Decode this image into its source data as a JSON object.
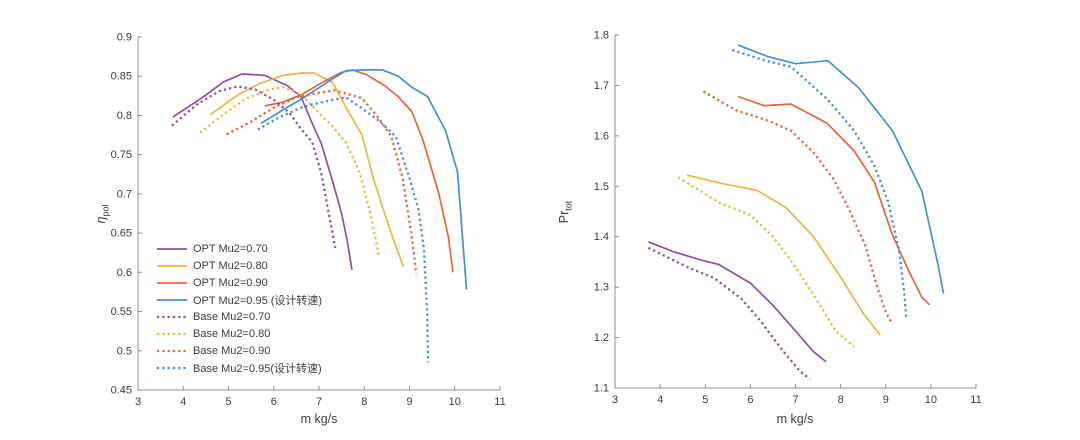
{
  "figure": {
    "background": "#ffffff"
  },
  "chart_data": [
    {
      "type": "line",
      "title": "",
      "xlabel": "m kg/s",
      "ylabel_main": "η",
      "ylabel_sub": "pol",
      "xlim": [
        3,
        11
      ],
      "ylim": [
        0.45,
        0.9
      ],
      "xticks": [
        3,
        4,
        5,
        6,
        7,
        8,
        9,
        10,
        11
      ],
      "yticks": [
        0.45,
        0.5,
        0.55,
        0.6,
        0.65,
        0.7,
        0.75,
        0.8,
        0.85,
        0.9
      ],
      "grid": false,
      "legend": true,
      "legend_position": "southwest",
      "series": [
        {
          "name": "OPT Mu2=0.70",
          "color": "#8E4FA8",
          "style": "solid",
          "x": [
            3.77,
            4.4,
            4.9,
            5.3,
            5.8,
            6.3,
            6.6,
            6.85,
            7.05,
            7.3,
            7.5,
            7.62,
            7.73
          ],
          "y": [
            0.798,
            0.822,
            0.843,
            0.853,
            0.851,
            0.838,
            0.824,
            0.79,
            0.764,
            0.716,
            0.675,
            0.641,
            0.603
          ]
        },
        {
          "name": "OPT Mu2=0.80",
          "color": "#EFB63C",
          "style": "solid",
          "x": [
            4.6,
            5.2,
            5.7,
            6.2,
            6.6,
            6.9,
            7.3,
            7.6,
            7.95,
            8.2,
            8.45,
            8.65,
            8.87
          ],
          "y": [
            0.801,
            0.826,
            0.841,
            0.851,
            0.854,
            0.854,
            0.842,
            0.81,
            0.775,
            0.72,
            0.675,
            0.641,
            0.607
          ]
        },
        {
          "name": "OPT Mu2=0.90",
          "color": "#E8643A",
          "style": "solid",
          "x": [
            5.8,
            6.2,
            6.6,
            7.1,
            7.5,
            7.75,
            8.05,
            8.45,
            8.75,
            9.05,
            9.3,
            9.65,
            9.86,
            9.96
          ],
          "y": [
            0.812,
            0.817,
            0.826,
            0.843,
            0.855,
            0.858,
            0.852,
            0.838,
            0.824,
            0.805,
            0.768,
            0.7,
            0.645,
            0.6
          ]
        },
        {
          "name": "OPT Mu2=0.95 (设计转速)",
          "color": "#4191DB",
          "style": "solid",
          "x": [
            5.72,
            6.2,
            6.7,
            7.2,
            7.6,
            8.0,
            8.4,
            8.75,
            9.05,
            9.4,
            9.8,
            10.06,
            10.12,
            10.26
          ],
          "y": [
            0.79,
            0.807,
            0.824,
            0.843,
            0.857,
            0.858,
            0.858,
            0.85,
            0.836,
            0.824,
            0.78,
            0.728,
            0.683,
            0.578
          ]
        },
        {
          "name": "Base Mu2=0.70",
          "color": "#8E4FA8",
          "style": "dotted",
          "x": [
            3.75,
            4.3,
            4.8,
            5.2,
            5.6,
            6.0,
            6.35,
            6.6,
            6.85,
            7.05,
            7.2,
            7.36
          ],
          "y": [
            0.787,
            0.814,
            0.831,
            0.837,
            0.833,
            0.82,
            0.803,
            0.783,
            0.766,
            0.726,
            0.68,
            0.631
          ]
        },
        {
          "name": "Base Mu2=0.80",
          "color": "#EFB63C",
          "style": "dotted",
          "x": [
            4.37,
            4.9,
            5.4,
            5.9,
            6.2,
            6.6,
            7.0,
            7.3,
            7.6,
            7.9,
            8.15,
            8.32
          ],
          "y": [
            0.778,
            0.802,
            0.822,
            0.833,
            0.836,
            0.827,
            0.803,
            0.786,
            0.765,
            0.727,
            0.672,
            0.622
          ]
        },
        {
          "name": "Base Mu2=0.90",
          "color": "#E8643A",
          "style": "dotted",
          "x": [
            4.96,
            5.5,
            6.0,
            6.5,
            7.0,
            7.35,
            7.95,
            8.3,
            8.6,
            8.85,
            9.05,
            9.15
          ],
          "y": [
            0.776,
            0.792,
            0.81,
            0.823,
            0.829,
            0.832,
            0.822,
            0.798,
            0.773,
            0.72,
            0.645,
            0.598
          ]
        },
        {
          "name": "Base Mu2=0.95(设计转速)",
          "color": "#4191DB",
          "style": "dotted",
          "x": [
            5.65,
            6.1,
            6.6,
            7.0,
            7.3,
            7.6,
            8.0,
            8.35,
            8.7,
            9.0,
            9.2,
            9.32,
            9.39,
            9.41
          ],
          "y": [
            0.782,
            0.797,
            0.81,
            0.816,
            0.82,
            0.823,
            0.807,
            0.792,
            0.773,
            0.72,
            0.68,
            0.63,
            0.55,
            0.485
          ]
        }
      ]
    },
    {
      "type": "line",
      "title": "",
      "xlabel": "m kg/s",
      "ylabel_main": "Pr",
      "ylabel_sub": "tot",
      "xlim": [
        3,
        11
      ],
      "ylim": [
        1.1,
        1.8
      ],
      "xticks": [
        3,
        4,
        5,
        6,
        7,
        8,
        9,
        10,
        11
      ],
      "yticks": [
        1.1,
        1.2,
        1.3,
        1.4,
        1.5,
        1.6,
        1.7,
        1.8
      ],
      "grid": false,
      "legend": false,
      "series": [
        {
          "name": "OPT Mu2=0.70",
          "color": "#8E4FA8",
          "style": "solid",
          "x": [
            3.74,
            4.3,
            4.9,
            5.3,
            6.0,
            6.5,
            7.0,
            7.4,
            7.68
          ],
          "y": [
            1.39,
            1.37,
            1.354,
            1.345,
            1.308,
            1.264,
            1.213,
            1.172,
            1.152
          ]
        },
        {
          "name": "OPT Mu2=0.80",
          "color": "#EFB63C",
          "style": "solid",
          "x": [
            4.6,
            5.4,
            6.15,
            6.8,
            7.4,
            8.0,
            8.5,
            8.88
          ],
          "y": [
            1.522,
            1.505,
            1.492,
            1.457,
            1.4,
            1.32,
            1.248,
            1.205
          ]
        },
        {
          "name": "OPT Mu2=0.90",
          "color": "#E8643A",
          "style": "solid",
          "x": [
            5.73,
            6.3,
            6.9,
            7.7,
            8.3,
            8.75,
            9.15,
            9.5,
            9.8,
            9.97
          ],
          "y": [
            1.678,
            1.66,
            1.663,
            1.625,
            1.57,
            1.508,
            1.403,
            1.334,
            1.28,
            1.265
          ]
        },
        {
          "name": "OPT Mu2=0.95 (设计转速)",
          "color": "#4191DB",
          "style": "solid",
          "x": [
            5.73,
            6.4,
            7.0,
            7.72,
            8.4,
            9.15,
            9.8,
            10.17,
            10.28
          ],
          "y": [
            1.78,
            1.757,
            1.743,
            1.749,
            1.695,
            1.61,
            1.49,
            1.34,
            1.287
          ]
        },
        {
          "name": "Base Mu2=0.70",
          "color": "#8E4FA8",
          "style": "dotted",
          "x": [
            3.74,
            4.6,
            5.2,
            5.8,
            6.25,
            6.7,
            7.1,
            7.32
          ],
          "y": [
            1.378,
            1.34,
            1.318,
            1.277,
            1.23,
            1.176,
            1.133,
            1.118
          ]
        },
        {
          "name": "Base Mu2=0.80",
          "color": "#EFB63C",
          "style": "dotted",
          "x": [
            4.4,
            5.3,
            6.0,
            6.5,
            7.0,
            7.5,
            7.9,
            8.3
          ],
          "y": [
            1.518,
            1.468,
            1.443,
            1.4,
            1.34,
            1.27,
            1.212,
            1.182
          ]
        },
        {
          "name": "Base Mu2=0.90",
          "color": "#E8643A",
          "style": "dotted",
          "x": [
            4.96,
            5.7,
            6.4,
            6.9,
            7.4,
            7.85,
            8.2,
            8.55,
            8.8,
            9.0,
            9.13
          ],
          "y": [
            1.688,
            1.65,
            1.63,
            1.61,
            1.567,
            1.513,
            1.452,
            1.382,
            1.304,
            1.25,
            1.23
          ]
        },
        {
          "name": "Base Mu2=0.95(设计转速)",
          "color": "#4191DB",
          "style": "dotted",
          "x": [
            5.6,
            6.3,
            6.9,
            7.15,
            7.7,
            8.3,
            8.75,
            9.05,
            9.3,
            9.42,
            9.45
          ],
          "y": [
            1.77,
            1.75,
            1.737,
            1.717,
            1.673,
            1.61,
            1.54,
            1.47,
            1.37,
            1.28,
            1.24
          ]
        }
      ]
    }
  ]
}
